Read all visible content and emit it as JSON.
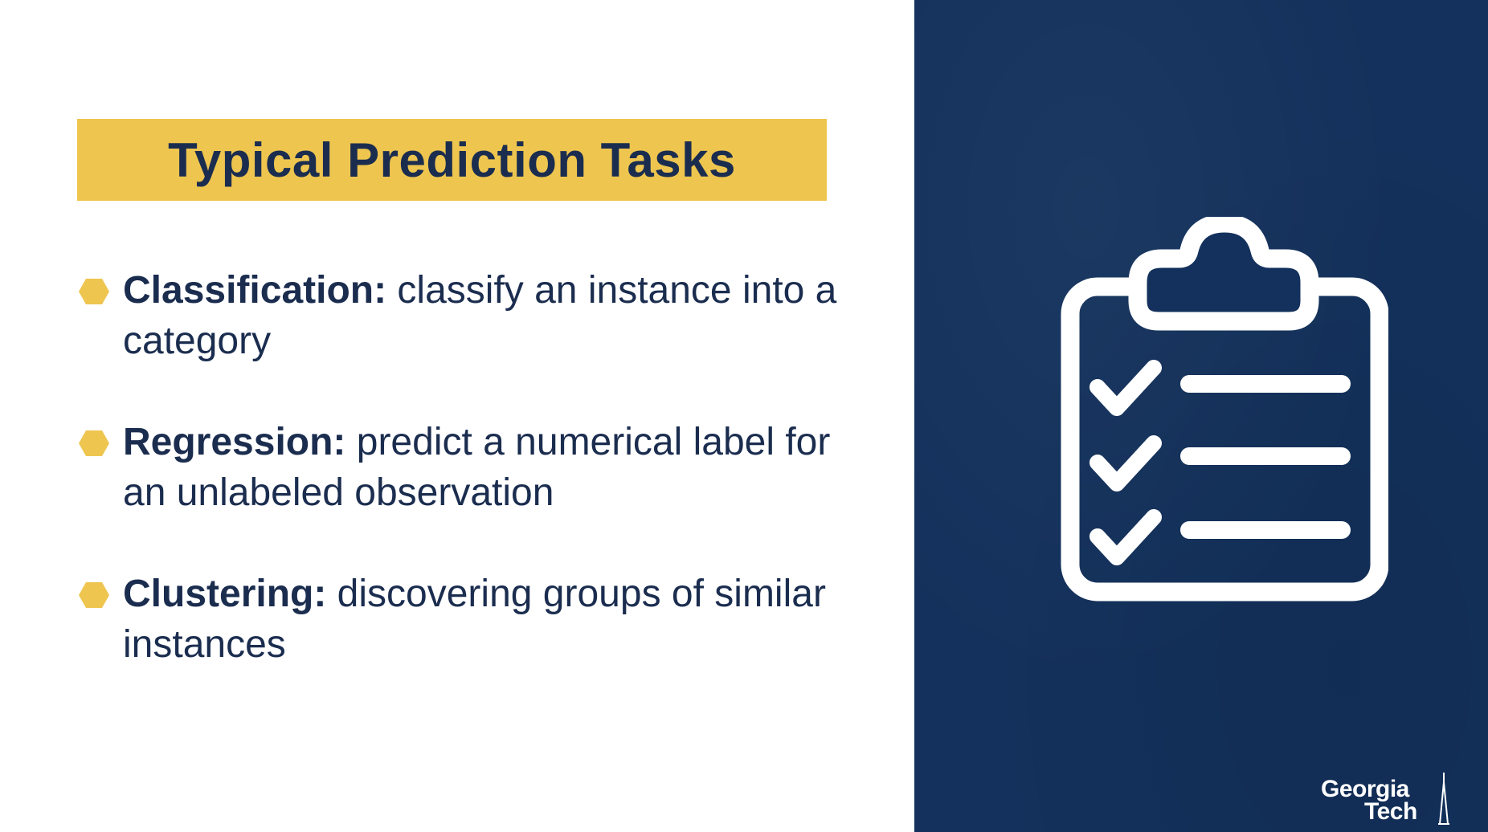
{
  "slide": {
    "title": "Typical Prediction Tasks",
    "bullets": [
      {
        "term": "Classification:",
        "description": " classify an instance into a category"
      },
      {
        "term": "Regression:",
        "description": " predict a numerical label for an unlabeled observation"
      },
      {
        "term": "Clustering:",
        "description": " discovering groups of similar instances"
      }
    ]
  },
  "logo": {
    "line1": "Georgia",
    "line2": "Tech"
  },
  "icons": {
    "bullet": "hexagon-icon",
    "illustration": "clipboard-checklist-icon",
    "logo": "tech-tower-icon"
  },
  "colors": {
    "accent": "#eec54f",
    "text": "#1b2d4f",
    "panel": "#13315c",
    "icon": "#ffffff"
  }
}
